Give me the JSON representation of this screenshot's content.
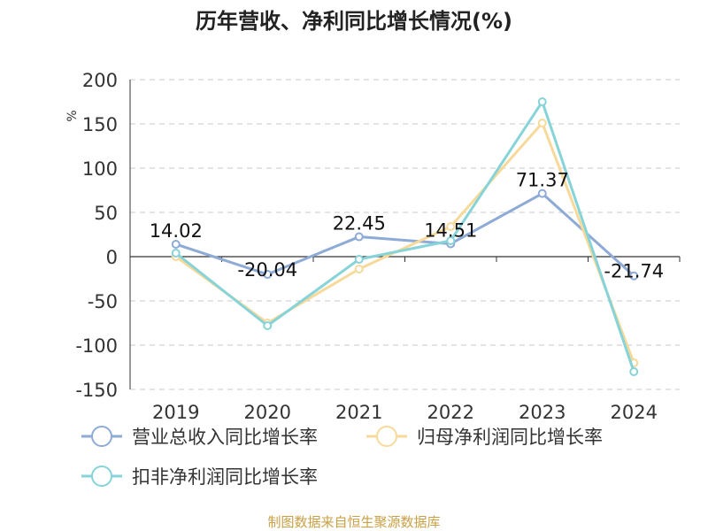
{
  "chart_data": {
    "type": "line",
    "title": "历年营收、净利同比增长情况(%)",
    "ylabel": "%",
    "categories": [
      "2019",
      "2020",
      "2021",
      "2022",
      "2023",
      "2024"
    ],
    "ylim": [
      -150,
      200
    ],
    "yticks": [
      200,
      150,
      100,
      50,
      0,
      -50,
      -100,
      -150
    ],
    "grid": true,
    "legend_position": "bottom-left",
    "series": [
      {
        "name": "营业总收入同比增长率",
        "color": "#8eaad6",
        "values": [
          14.02,
          -20.04,
          22.45,
          14.51,
          71.37,
          -21.74
        ],
        "labels": [
          "14.02",
          "-20.04",
          "22.45",
          "14.51",
          "71.37",
          "-21.74"
        ]
      },
      {
        "name": "归母净利润同比增长率",
        "color": "#f7d99a",
        "values": [
          0,
          -75,
          -14,
          34,
          151,
          -120
        ]
      },
      {
        "name": "扣非净利润同比增长率",
        "color": "#86d3d8",
        "values": [
          4,
          -78,
          -3,
          18,
          175,
          -130
        ]
      }
    ],
    "source": "制图数据来自恒生聚源数据库"
  }
}
